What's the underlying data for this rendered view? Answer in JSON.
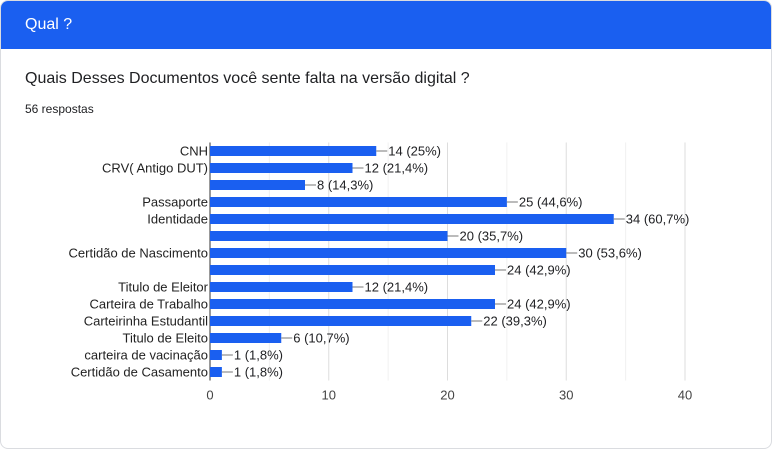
{
  "header": {
    "title": "Qual ?"
  },
  "question": {
    "text": "Quais Desses Documentos você sente falta na versão digital ?",
    "responses": "56 respostas"
  },
  "colors": {
    "header_bg": "#1a5ff0",
    "bar": "#1a5ff0",
    "grid": "#e6e6e6",
    "axis_label": "#444444",
    "value_label": "#202124"
  },
  "chart_data": {
    "type": "bar",
    "orientation": "horizontal",
    "title": "",
    "xlabel": "",
    "ylabel": "",
    "xlim": [
      0,
      40
    ],
    "xticks": [
      0,
      10,
      20,
      30,
      40
    ],
    "grid": true,
    "categories": [
      "CNH",
      "CRV( Antigo DUT)",
      "",
      "Passaporte",
      "Identidade",
      "",
      "Certidão de Nascimento",
      "",
      "Titulo de Eleitor",
      "Carteira de Trabalho",
      "Carteirinha Estudantil",
      "Titulo de Eleito",
      "carteira de vacinação",
      "Certidão de Casamento"
    ],
    "values": [
      14,
      12,
      8,
      25,
      34,
      20,
      30,
      24,
      12,
      24,
      22,
      6,
      1,
      1
    ],
    "data_labels": [
      "14 (25%)",
      "12 (21,4%)",
      "8 (14,3%)",
      "25 (44,6%)",
      "34 (60,7%)",
      "20 (35,7%)",
      "30 (53,6%)",
      "24 (42,9%)",
      "12 (21,4%)",
      "24 (42,9%)",
      "22 (39,3%)",
      "6 (10,7%)",
      "1 (1,8%)",
      "1 (1,8%)"
    ]
  }
}
